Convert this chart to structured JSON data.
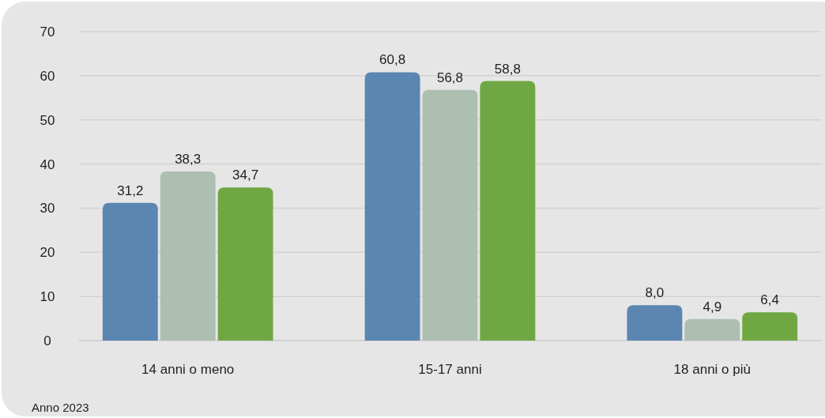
{
  "chart_data": {
    "type": "bar",
    "categories": [
      "14 anni o meno",
      "15-17 anni",
      "18 anni o più"
    ],
    "series": [
      {
        "color": "#5b86b1",
        "values": [
          31.2,
          60.8,
          8.0
        ]
      },
      {
        "color": "#adbfb0",
        "values": [
          38.3,
          56.8,
          4.9
        ]
      },
      {
        "color": "#6fa843",
        "values": [
          34.7,
          58.8,
          6.4
        ]
      }
    ],
    "value_labels": [
      [
        "31,2",
        "60,8",
        "8,0"
      ],
      [
        "38,3",
        "56,8",
        "4,9"
      ],
      [
        "34,7",
        "58,8",
        "6,4"
      ]
    ],
    "ylim": [
      0,
      70
    ],
    "yticks": [
      0,
      10,
      20,
      30,
      40,
      50,
      60,
      70
    ],
    "grid": "y",
    "annotations": [
      "Anno 2023"
    ]
  }
}
